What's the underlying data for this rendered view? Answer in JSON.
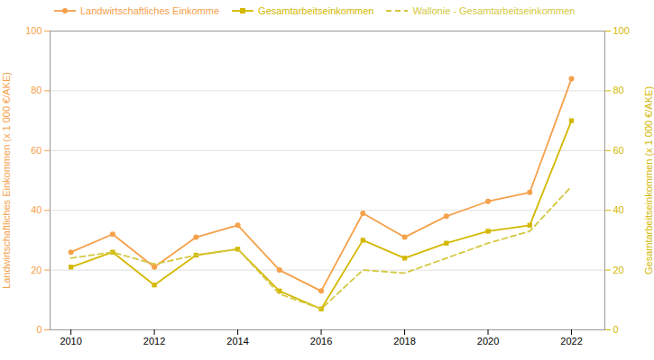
{
  "chart_data": {
    "type": "line",
    "x": [
      2010,
      2011,
      2012,
      2013,
      2014,
      2015,
      2016,
      2017,
      2018,
      2019,
      2020,
      2021,
      2022
    ],
    "series": [
      {
        "name": "Landwirtschaftliches Einkomme",
        "color": "#F5A04A",
        "marker": "circle",
        "line_style": "solid",
        "values": [
          26,
          32,
          21,
          31,
          35,
          20,
          13,
          39,
          31,
          38,
          43,
          46,
          84
        ]
      },
      {
        "name": "Gesamtarbeitseinkommen",
        "color": "#D4B800",
        "marker": "square",
        "line_style": "solid",
        "axis": "y2",
        "values": [
          21,
          26,
          15,
          25,
          27,
          13,
          7,
          30,
          24,
          29,
          33,
          35,
          70
        ]
      },
      {
        "name": "Wallonie - Gesamtarbeitseinkommen",
        "color": "#D4C840",
        "marker": "none",
        "line_style": "dashed",
        "axis": "y2",
        "values": [
          24,
          26,
          22,
          25,
          27,
          12,
          7,
          20,
          19,
          24,
          29,
          33,
          48
        ]
      }
    ],
    "ylabel": "Landwirtschaftliches Einkommen (x 1 000 €/AKE)",
    "y2label": "Gesamtarbeitseinkommen (x 1 000 €/AKE)",
    "xlim": [
      2009.5,
      2022.8
    ],
    "xticks": [
      2010,
      2012,
      2014,
      2016,
      2018,
      2020,
      2022
    ],
    "ylim": [
      0,
      100
    ],
    "yticks": [
      0,
      20,
      40,
      60,
      80,
      100
    ],
    "y2lim": [
      0,
      100
    ],
    "y2ticks": [
      0,
      20,
      40,
      60,
      80,
      100
    ],
    "grid": true,
    "legend": "upper left"
  }
}
